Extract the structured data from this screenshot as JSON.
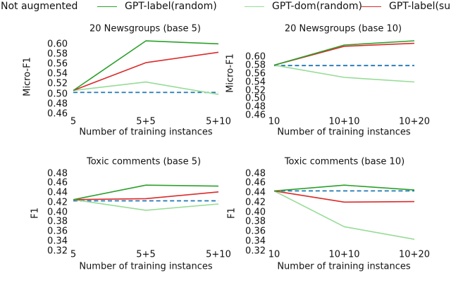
{
  "figure": {
    "background": "#ffffff"
  },
  "legend": {
    "items": [
      {
        "label": "Not augmented",
        "color": "#1f77b4",
        "line_style": "dashed"
      },
      {
        "label": "GPT-label(random)",
        "color": "#2ca02c",
        "line_style": "solid"
      },
      {
        "label": "GPT-dom(random)",
        "color": "#96dc96",
        "line_style": "solid"
      },
      {
        "label": "GPT-label(su",
        "color": "#dc2a2a",
        "line_style": "solid"
      }
    ]
  },
  "chart_data": [
    {
      "type": "line",
      "title": "20 Newsgroups (base 5)",
      "xlabel": "Number of training instances",
      "ylabel": "Micro-F1",
      "x_categories": [
        "5",
        "5+5",
        "5+10"
      ],
      "ytick_labels": [
        "0.60",
        "0.58",
        "0.56",
        "0.54",
        "0.52",
        "0.50",
        "0.48",
        "0.46"
      ],
      "ylim": [
        0.454,
        0.616
      ],
      "grid": false,
      "legend_position": "figure-top",
      "series": [
        {
          "name": "Not augmented",
          "color": "#1f77b4",
          "dashed": true,
          "values": [
            0.503,
            0.503,
            0.503
          ]
        },
        {
          "name": "GPT-dom(random)",
          "color": "#96dc96",
          "dashed": false,
          "values": [
            0.507,
            0.524,
            0.499
          ]
        },
        {
          "name": "GPT-label(su",
          "color": "#dc2a2a",
          "dashed": false,
          "values": [
            0.507,
            0.563,
            0.584
          ]
        },
        {
          "name": "GPT-label(random)",
          "color": "#2ca02c",
          "dashed": false,
          "values": [
            0.507,
            0.607,
            0.601
          ]
        }
      ]
    },
    {
      "type": "line",
      "title": "20 Newsgroups (base 10)",
      "xlabel": "Number of training instances",
      "ylabel": "Micro-F1",
      "x_categories": [
        "10",
        "10+10",
        "10+20"
      ],
      "ytick_labels": [
        "0.60",
        "0.58",
        "0.56",
        "0.54",
        "0.52",
        "0.50",
        "0.48",
        "0.46"
      ],
      "ylim": [
        0.457,
        0.648
      ],
      "grid": false,
      "legend_position": "figure-top",
      "series": [
        {
          "name": "Not augmented",
          "color": "#1f77b4",
          "dashed": true,
          "values": [
            0.579,
            0.579,
            0.579
          ]
        },
        {
          "name": "GPT-dom(random)",
          "color": "#96dc96",
          "dashed": false,
          "values": [
            0.58,
            0.551,
            0.54
          ]
        },
        {
          "name": "GPT-label(su",
          "color": "#dc2a2a",
          "dashed": false,
          "values": [
            0.58,
            0.625,
            0.632
          ]
        },
        {
          "name": "GPT-label(random)",
          "color": "#2ca02c",
          "dashed": false,
          "values": [
            0.58,
            0.628,
            0.638
          ]
        }
      ]
    },
    {
      "type": "line",
      "title": "Toxic comments (base 5)",
      "xlabel": "Number of training instances",
      "ylabel": "F1",
      "x_categories": [
        "5",
        "5+5",
        "5+10"
      ],
      "ytick_labels": [
        "0.48",
        "0.46",
        "0.44",
        "0.42",
        "0.40",
        "0.38",
        "0.36",
        "0.34",
        "0.32"
      ],
      "ylim": [
        0.315,
        0.49
      ],
      "grid": false,
      "legend_position": "figure-top",
      "series": [
        {
          "name": "Not augmented",
          "color": "#1f77b4",
          "dashed": true,
          "values": [
            0.4235,
            0.4235,
            0.4235
          ]
        },
        {
          "name": "GPT-dom(random)",
          "color": "#96dc96",
          "dashed": false,
          "values": [
            0.426,
            0.404,
            0.417
          ]
        },
        {
          "name": "GPT-label(su",
          "color": "#dc2a2a",
          "dashed": false,
          "values": [
            0.426,
            0.428,
            0.442
          ]
        },
        {
          "name": "GPT-label(random)",
          "color": "#2ca02c",
          "dashed": false,
          "values": [
            0.426,
            0.456,
            0.454
          ]
        }
      ]
    },
    {
      "type": "line",
      "title": "Toxic comments (base 10)",
      "xlabel": "Number of training instances",
      "ylabel": "F1",
      "x_categories": [
        "10",
        "10+10",
        "10+20"
      ],
      "ytick_labels": [
        "0.48",
        "0.46",
        "0.44",
        "0.42",
        "0.40",
        "0.38",
        "0.36",
        "0.34",
        "0.32"
      ],
      "ylim": [
        0.315,
        0.49
      ],
      "grid": false,
      "legend_position": "figure-top",
      "series": [
        {
          "name": "Not augmented",
          "color": "#1f77b4",
          "dashed": true,
          "values": [
            0.444,
            0.444,
            0.444
          ]
        },
        {
          "name": "GPT-dom(random)",
          "color": "#96dc96",
          "dashed": false,
          "values": [
            0.444,
            0.37,
            0.344
          ]
        },
        {
          "name": "GPT-label(su",
          "color": "#dc2a2a",
          "dashed": false,
          "values": [
            0.444,
            0.421,
            0.422
          ]
        },
        {
          "name": "GPT-label(random)",
          "color": "#2ca02c",
          "dashed": false,
          "values": [
            0.444,
            0.456,
            0.446
          ]
        }
      ]
    }
  ]
}
